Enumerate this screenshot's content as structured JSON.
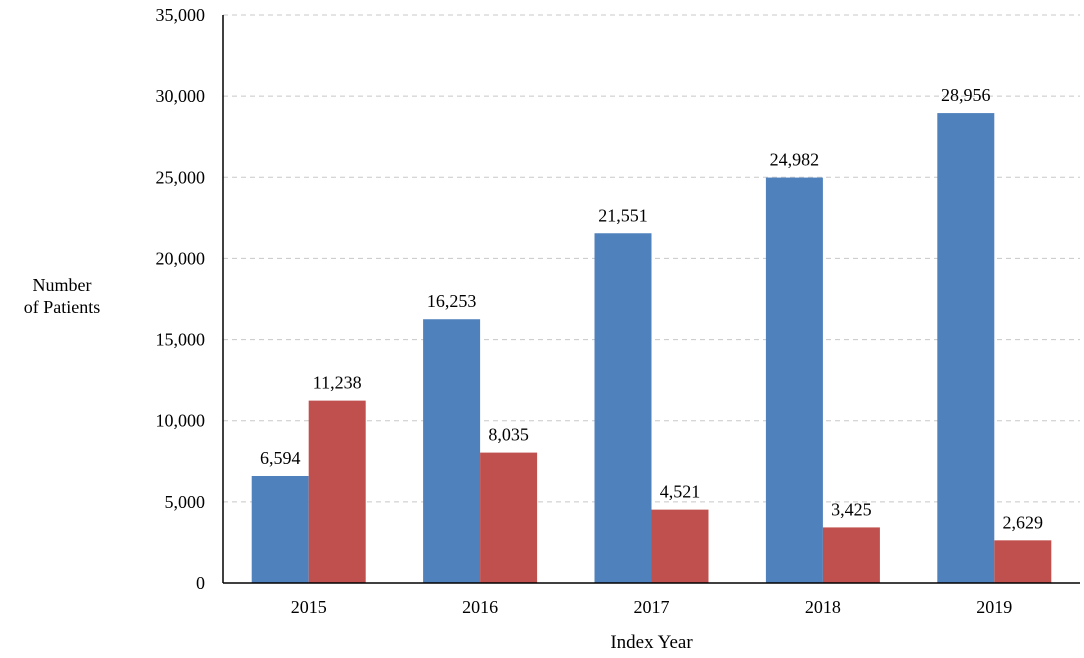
{
  "chart_data": {
    "type": "bar",
    "title": "",
    "xlabel": "Index Year",
    "ylabel_line1": "Number",
    "ylabel_line2": "of Patients",
    "categories": [
      "2015",
      "2016",
      "2017",
      "2018",
      "2019"
    ],
    "series": [
      {
        "values": [
          6594,
          16253,
          21551,
          24982,
          28956
        ],
        "labels": [
          "6,594",
          "16,253",
          "21,551",
          "24,982",
          "28,956"
        ],
        "color": "#4f81bd"
      },
      {
        "values": [
          11238,
          8035,
          4521,
          3425,
          2629
        ],
        "labels": [
          "11,238",
          "8,035",
          "4,521",
          "3,425",
          "2,629"
        ],
        "color": "#c0504d"
      }
    ],
    "ylim": [
      0,
      35000
    ],
    "yticks": [
      0,
      5000,
      10000,
      15000,
      20000,
      25000,
      30000,
      35000
    ],
    "ytick_labels": [
      "0",
      "5,000",
      "10,000",
      "15,000",
      "20,000",
      "25,000",
      "30,000",
      "35,000"
    ],
    "grid": true,
    "legend": "none"
  }
}
